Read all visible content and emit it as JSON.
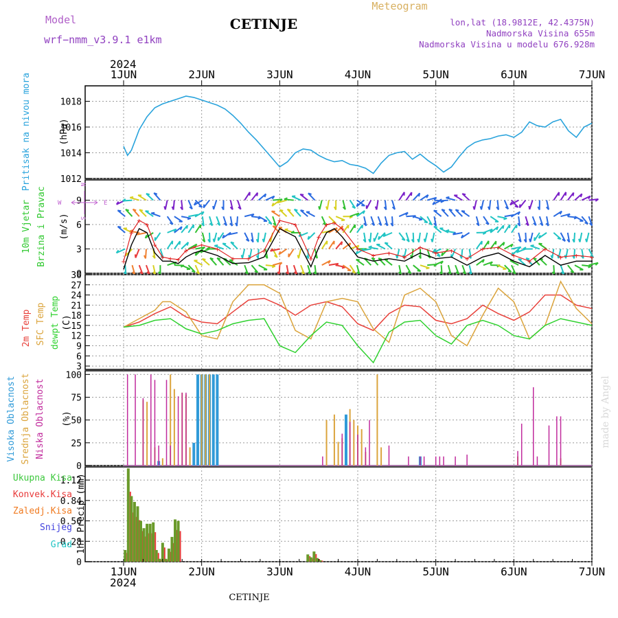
{
  "header": {
    "model_label": "Model",
    "model_name": "wrf−nmm_v3.9.1  e1km",
    "station_title": "CETINJE",
    "meteogram_label": "Meteogram",
    "lonlat": "lon,lat (18.9812E, 42.4375N)",
    "elevation": "Nadmorska Visina 655m",
    "model_elevation": "Nadmorska Visina u modelu 676.928m"
  },
  "footer": {
    "station": "CETINJE",
    "credit": "made by Angel"
  },
  "time_axis": {
    "year": "2024",
    "labels": [
      "1JUN",
      "2JUN",
      "3JUN",
      "4JUN",
      "5JUN",
      "6JUN",
      "7JUN"
    ]
  },
  "colors": {
    "pressure": "#29a3dc",
    "temp2m": "#e8403a",
    "sfc_temp": "#dba43c",
    "dewpoint": "#2fd12f",
    "wind_speed": "#000000",
    "wind_gust": "#e02020",
    "high_cloud": "#2f9ad8",
    "mid_cloud": "#dba43c",
    "low_cloud": "#c02a9c",
    "total_precip": "#3cc83c",
    "conv_precip": "#e83a3a",
    "freezing_precip": "#f07a20",
    "snow": "#4040dd",
    "hail": "#20c4c4",
    "precip_bar": "#6a9a2a",
    "grid": "#999999",
    "wind_purple": "#7a20c8",
    "wind_blue": "#2a6ae0",
    "wind_cyan": "#20c4c4",
    "wind_green": "#30c030",
    "wind_yellow": "#d8d020",
    "wind_orange": "#f08030",
    "wind_red": "#e83a3a"
  },
  "chart_data": [
    {
      "type": "line",
      "panel": "pressure",
      "ylabel": "Pritisak na nivou mora",
      "unit": "(hPa)",
      "yticks": [
        1012,
        1014,
        1016,
        1018
      ],
      "ylim": [
        1012,
        1019.2
      ],
      "grid": true,
      "series": [
        {
          "x": [
            0,
            0.05,
            0.1,
            0.15,
            0.2,
            0.3,
            0.4,
            0.5,
            0.6,
            0.7,
            0.8,
            0.9,
            1.0,
            1.1,
            1.2,
            1.3,
            1.4,
            1.5,
            1.6,
            1.7,
            1.8,
            1.9,
            2.0,
            2.1,
            2.2,
            2.3,
            2.4,
            2.5,
            2.6,
            2.7,
            2.8,
            2.9,
            3.0,
            3.1,
            3.2,
            3.3,
            3.4,
            3.5,
            3.6,
            3.7,
            3.8,
            3.9,
            4.0,
            4.1,
            4.2,
            4.3,
            4.4,
            4.5,
            4.6,
            4.7,
            4.8,
            4.9,
            5.0,
            5.1,
            5.2,
            5.3,
            5.4,
            5.5,
            5.6,
            5.7,
            5.8,
            5.9,
            6.0
          ],
          "y": [
            1014.5,
            1013.8,
            1014.2,
            1015.0,
            1015.8,
            1016.8,
            1017.5,
            1017.8,
            1018.0,
            1018.2,
            1018.4,
            1018.3,
            1018.1,
            1017.9,
            1017.7,
            1017.4,
            1016.9,
            1016.3,
            1015.6,
            1015.0,
            1014.3,
            1013.6,
            1012.9,
            1013.3,
            1014.0,
            1014.3,
            1014.2,
            1013.8,
            1013.5,
            1013.3,
            1013.4,
            1013.1,
            1013.0,
            1012.8,
            1012.4,
            1013.2,
            1013.8,
            1014.0,
            1014.1,
            1013.5,
            1013.9,
            1013.4,
            1013.0,
            1012.5,
            1012.9,
            1013.7,
            1014.4,
            1014.8,
            1015.0,
            1015.1,
            1015.3,
            1015.4,
            1015.2,
            1015.6,
            1016.4,
            1016.1,
            1016.0,
            1016.4,
            1016.6,
            1015.7,
            1015.2,
            1016.0,
            1016.3
          ]
        }
      ]
    },
    {
      "type": "line",
      "panel": "wind",
      "ylabel": [
        "10m Vjetar",
        "Brzina i Pravac"
      ],
      "unit": "(m/s)",
      "compass": {
        "n": "N",
        "w": "W",
        "e": "E",
        "s": "S"
      },
      "yticks": [
        0,
        3,
        6,
        9
      ],
      "ylim": [
        0,
        11.5
      ],
      "grid": true,
      "series": [
        {
          "role": "speed",
          "x": [
            0,
            0.1,
            0.2,
            0.3,
            0.4,
            0.5,
            0.6,
            0.7,
            0.8,
            0.9,
            1.0,
            1.2,
            1.4,
            1.6,
            1.8,
            2.0,
            2.2,
            2.4,
            2.5,
            2.6,
            2.7,
            2.8,
            3.0,
            3.2,
            3.4,
            3.6,
            3.8,
            4.0,
            4.2,
            4.4,
            4.6,
            4.8,
            5.0,
            5.2,
            5.4,
            5.6,
            5.8,
            6.0
          ],
          "y": [
            0.5,
            3.5,
            5.5,
            5.0,
            2.5,
            1.5,
            1.5,
            1.2,
            2.0,
            2.5,
            2.8,
            2.2,
            1.2,
            1.3,
            2.0,
            5.5,
            4.5,
            0.8,
            3.2,
            5.0,
            5.5,
            4.5,
            2.0,
            1.5,
            1.8,
            1.5,
            2.5,
            1.8,
            2.0,
            1.0,
            2.0,
            2.5,
            1.5,
            0.8,
            2.2,
            1.0,
            1.5,
            1.5
          ]
        },
        {
          "role": "gust",
          "x": [
            0,
            0.1,
            0.2,
            0.3,
            0.4,
            0.5,
            0.6,
            0.7,
            0.8,
            0.9,
            1.0,
            1.2,
            1.4,
            1.6,
            1.8,
            2.0,
            2.2,
            2.4,
            2.5,
            2.6,
            2.7,
            2.8,
            3.0,
            3.2,
            3.4,
            3.6,
            3.8,
            4.0,
            4.2,
            4.4,
            4.6,
            4.8,
            5.0,
            5.2,
            5.4,
            5.6,
            5.8,
            6.0
          ],
          "y": [
            1.5,
            5.0,
            6.5,
            6.0,
            3.5,
            2.0,
            1.8,
            1.7,
            2.8,
            3.2,
            3.5,
            3.0,
            1.8,
            1.8,
            2.8,
            6.5,
            6.0,
            1.8,
            4.5,
            6.0,
            6.2,
            5.5,
            3.0,
            2.2,
            2.5,
            2.0,
            3.2,
            2.5,
            2.8,
            1.8,
            3.0,
            3.2,
            2.2,
            1.5,
            3.0,
            2.0,
            2.2,
            2.0
          ]
        }
      ]
    },
    {
      "type": "line",
      "panel": "temperature",
      "ylabel": [
        "2m Temp",
        "SFC Temp",
        "dewpt Temp"
      ],
      "unit": "(C)",
      "yticks": [
        3,
        6,
        9,
        12,
        15,
        18,
        21,
        24,
        27,
        30
      ],
      "ylim": [
        2,
        30
      ],
      "grid": true,
      "series": [
        {
          "role": "temp2m",
          "x": [
            0,
            0.2,
            0.4,
            0.6,
            0.8,
            1.0,
            1.2,
            1.4,
            1.6,
            1.8,
            2.0,
            2.2,
            2.4,
            2.6,
            2.8,
            3.0,
            3.2,
            3.4,
            3.6,
            3.8,
            4.0,
            4.2,
            4.4,
            4.6,
            4.8,
            5.0,
            5.2,
            5.4,
            5.6,
            5.8,
            6.0
          ],
          "y": [
            14.5,
            16,
            18.5,
            20.5,
            17.5,
            16,
            15.5,
            19,
            22.5,
            23,
            21,
            18,
            21,
            22,
            20.5,
            15.5,
            13.5,
            18.5,
            21,
            20.5,
            16.5,
            15.5,
            17,
            21,
            18.5,
            16.5,
            19,
            24,
            24,
            21,
            20
          ]
        },
        {
          "role": "sfc",
          "x": [
            0,
            0.2,
            0.4,
            0.5,
            0.6,
            0.8,
            1.0,
            1.2,
            1.4,
            1.6,
            1.8,
            2.0,
            2.2,
            2.4,
            2.6,
            2.8,
            3.0,
            3.2,
            3.4,
            3.6,
            3.8,
            4.0,
            4.2,
            4.4,
            4.6,
            4.8,
            5.0,
            5.2,
            5.4,
            5.6,
            5.8,
            6.0
          ],
          "y": [
            14.5,
            17,
            19.5,
            22,
            22,
            19,
            12,
            11,
            22,
            27,
            27,
            24.5,
            13.5,
            11,
            22,
            23,
            22,
            14,
            10,
            24,
            26,
            22,
            12,
            9,
            18,
            26,
            22,
            11,
            15,
            28,
            20,
            15.5
          ]
        },
        {
          "role": "dewpt",
          "x": [
            0,
            0.2,
            0.4,
            0.6,
            0.8,
            1.0,
            1.2,
            1.4,
            1.6,
            1.8,
            2.0,
            2.2,
            2.4,
            2.6,
            2.8,
            3.0,
            3.2,
            3.4,
            3.6,
            3.8,
            4.0,
            4.2,
            4.4,
            4.6,
            4.8,
            5.0,
            5.2,
            5.4,
            5.6,
            5.8,
            6.0
          ],
          "y": [
            14.5,
            15,
            16.5,
            17,
            14,
            12.5,
            13.5,
            15.5,
            16.5,
            17,
            9,
            7,
            12,
            16,
            15,
            9,
            4,
            13,
            16,
            16.5,
            12,
            9.5,
            15,
            16.5,
            15,
            12,
            11,
            15,
            17,
            16,
            15
          ]
        }
      ]
    },
    {
      "type": "bar",
      "panel": "clouds",
      "ylabel": [
        "Visoka Oblacnost",
        "Srednja Oblacnost",
        "Niska Oblacnost"
      ],
      "unit": "(%)",
      "yticks": [
        0,
        25,
        50,
        75,
        100
      ],
      "ylim": [
        0,
        104
      ],
      "grid": true,
      "series": [
        {
          "role": "high",
          "x": [
            0.45,
            0.9,
            0.95,
            1.0,
            1.05,
            1.1,
            1.15,
            1.2,
            2.85,
            3.8
          ],
          "values": [
            5,
            25,
            100,
            100,
            100,
            100,
            100,
            100,
            56,
            10
          ]
        },
        {
          "role": "mid",
          "x": [
            0.25,
            0.3,
            0.4,
            0.5,
            0.6,
            0.65,
            0.75,
            0.8,
            0.85,
            1.0,
            1.05,
            1.1,
            2.6,
            2.7,
            2.75,
            2.8,
            2.9,
            2.95,
            3.0,
            3.05,
            3.1,
            3.25,
            3.3,
            5.05,
            5.6
          ],
          "values": [
            72,
            70,
            20,
            8,
            100,
            84,
            80,
            78,
            20,
            100,
            100,
            100,
            50,
            56,
            26,
            30,
            62,
            50,
            44,
            40,
            15,
            100,
            20,
            10,
            8
          ]
        },
        {
          "role": "low",
          "x": [
            0.05,
            0.15,
            0.25,
            0.35,
            0.4,
            0.45,
            0.55,
            0.6,
            0.7,
            0.75,
            0.8,
            2.55,
            2.8,
            2.9,
            3.0,
            3.1,
            3.15,
            3.4,
            3.65,
            3.8,
            3.85,
            4.0,
            4.05,
            4.1,
            4.25,
            4.4,
            5.05,
            5.1,
            5.25,
            5.3,
            5.45,
            5.55,
            5.6
          ],
          "values": [
            100,
            100,
            74,
            100,
            94,
            22,
            94,
            22,
            76,
            80,
            80,
            10,
            35,
            48,
            34,
            20,
            50,
            22,
            10,
            10,
            10,
            10,
            10,
            10,
            10,
            12,
            16,
            46,
            86,
            10,
            44,
            54,
            54
          ]
        }
      ]
    },
    {
      "type": "bar",
      "panel": "precipitation",
      "ylabel": "1hr Precip (mm)",
      "legend": [
        "Ukupna  Kisa",
        "Konvek.Kisa",
        "Zaledj.Kisa",
        "Snijeg",
        "Grad"
      ],
      "yticks": [
        0,
        0.28,
        0.56,
        0.84,
        1.12
      ],
      "ylim": [
        0,
        1.3
      ],
      "grid": true,
      "series": [
        {
          "role": "total",
          "x": [
            0.02,
            0.06,
            0.1,
            0.14,
            0.18,
            0.22,
            0.26,
            0.3,
            0.34,
            0.38,
            0.42,
            0.46,
            0.5,
            0.54,
            0.58,
            0.62,
            0.66,
            0.7,
            0.74,
            0.78,
            2.36,
            2.4,
            2.44,
            2.48,
            2.52
          ],
          "values": [
            0.16,
            1.28,
            0.9,
            0.82,
            0.76,
            0.56,
            0.46,
            0.52,
            0.52,
            0.54,
            0.16,
            0.04,
            0.26,
            0.04,
            0.18,
            0.34,
            0.58,
            0.56,
            0.0,
            0.0,
            0.1,
            0.06,
            0.14,
            0.05,
            0.02
          ]
        }
      ]
    }
  ]
}
